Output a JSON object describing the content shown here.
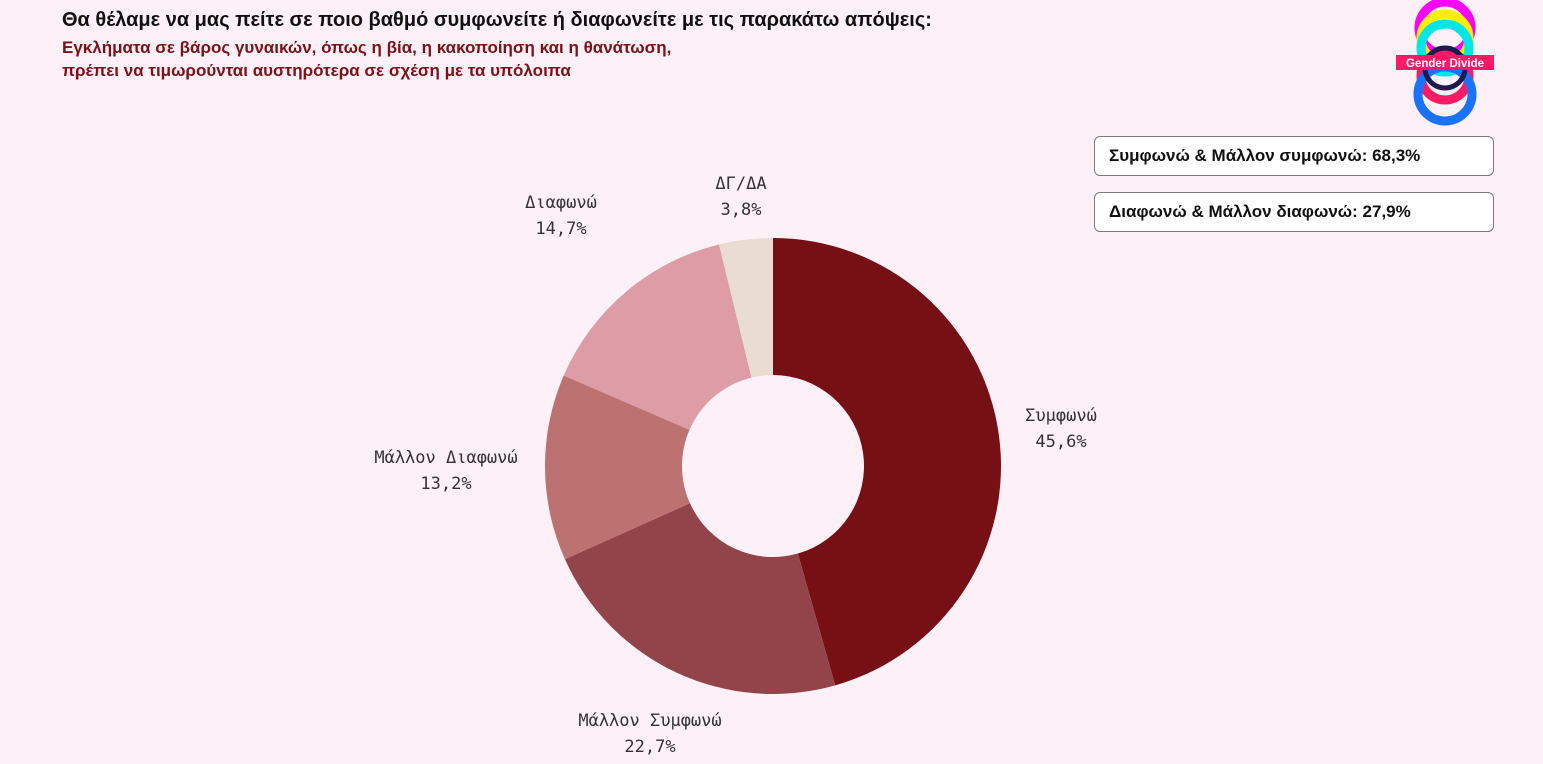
{
  "header": {
    "title": "Θα θέλαμε να μας πείτε σε ποιο βαθμό συμφωνείτε ή διαφωνείτε με τις παρακάτω απόψεις:",
    "subtitle_line1": "Εγκλήματα σε βάρος γυναικών, όπως η βία, η κακοποίηση και η θανάτωση,",
    "subtitle_line2": "πρέπει να τιμωρούνται αυστηρότερα σε σχέση με τα υπόλοιπα"
  },
  "summary": {
    "agree": "Συμφωνώ & Μάλλον συμφωνώ: 68,3%",
    "disagree": "Διαφωνώ & Μάλλον διαφωνώ: 27,9%"
  },
  "logo": {
    "text": "Gender Divide"
  },
  "colors": {
    "background": "#fdf0f7",
    "subtitle": "#7a1218",
    "agree": "#771015",
    "rather_agree": "#93444a",
    "rather_disagree": "#bd7272",
    "disagree": "#dd9ca6",
    "dk_na": "#e9ddd3"
  },
  "chart_data": {
    "type": "pie",
    "donut": true,
    "start": "top, clockwise",
    "slices": [
      {
        "label": "Συμφωνώ",
        "value": 45.6,
        "value_label": "45,6%",
        "color": "#771015"
      },
      {
        "label": "Μάλλον Συμφωνώ",
        "value": 22.7,
        "value_label": "22,7%",
        "color": "#93444a"
      },
      {
        "label": "Μάλλον Διαφωνώ",
        "value": 13.2,
        "value_label": "13,2%",
        "color": "#bd7272"
      },
      {
        "label": "Διαφωνώ",
        "value": 14.7,
        "value_label": "14,7%",
        "color": "#dd9ca6"
      },
      {
        "label": "ΔΓ/ΔΑ",
        "value": 3.8,
        "value_label": "3,8%",
        "color": "#e9ddd3"
      }
    ]
  }
}
